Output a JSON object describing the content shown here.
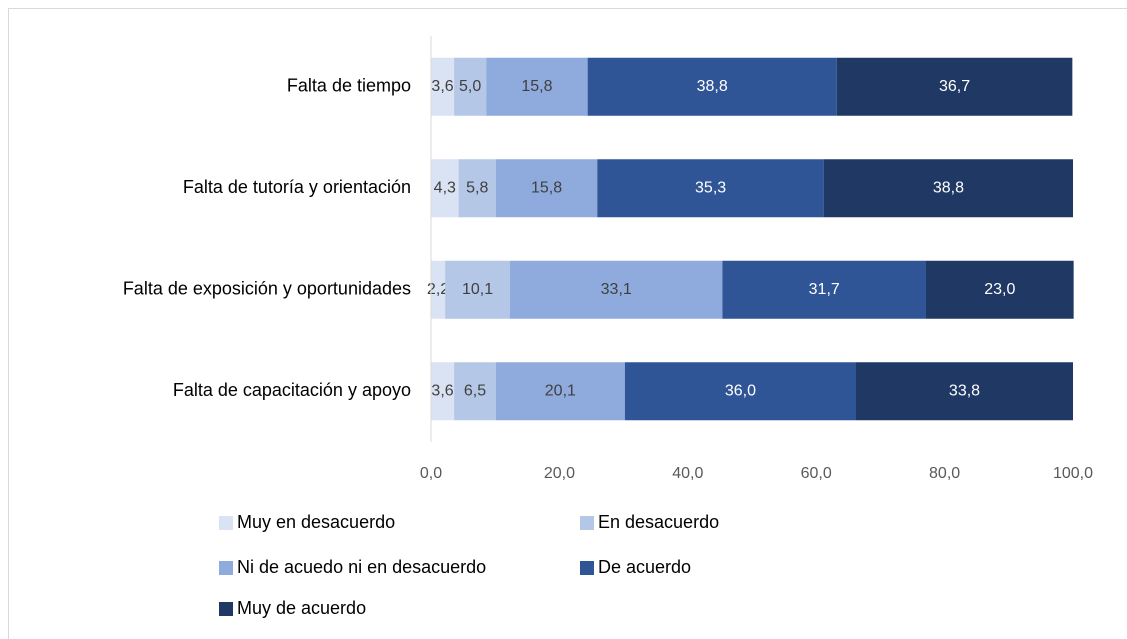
{
  "chart_data": {
    "type": "stacked_barh",
    "categories": [
      "Falta de tiempo",
      "Falta de tutoría y orientación",
      "Falta de exposición y oportunidades",
      "Falta de capacitación y apoyo"
    ],
    "series": [
      {
        "name": "Muy en desacuerdo",
        "color": "#dae3f3",
        "values": [
          3.6,
          4.3,
          2.2,
          3.6
        ],
        "value_labels": [
          "3,6",
          "4,3",
          "2,2",
          "3,6"
        ]
      },
      {
        "name": "En desacuerdo",
        "color": "#b4c7e7",
        "values": [
          5.0,
          5.8,
          10.1,
          6.5
        ],
        "value_labels": [
          "5,0",
          "5,8",
          "10,1",
          "6,5"
        ]
      },
      {
        "name": "Ni de acuedo ni en desacuerdo",
        "color": "#8faadc",
        "values": [
          15.8,
          15.8,
          33.1,
          20.1
        ],
        "value_labels": [
          "15,8",
          "15,8",
          "33,1",
          "20,1"
        ]
      },
      {
        "name": "De acuerdo",
        "color": "#2f5597",
        "values": [
          38.8,
          35.3,
          31.7,
          36.0
        ],
        "value_labels": [
          "38,8",
          "35,3",
          "31,7",
          "36,0"
        ]
      },
      {
        "name": "Muy de acuerdo",
        "color": "#203864",
        "values": [
          36.7,
          38.8,
          23.0,
          33.8
        ],
        "value_labels": [
          "36,7",
          "38,8",
          "23,0",
          "33,8"
        ]
      }
    ],
    "xlim": [
      0,
      100
    ],
    "xticks": [
      {
        "value": 0,
        "label": "0,0"
      },
      {
        "value": 20,
        "label": "20,0"
      },
      {
        "value": 40,
        "label": "40,0"
      },
      {
        "value": 60,
        "label": "60,0"
      },
      {
        "value": 80,
        "label": "80,0"
      },
      {
        "value": 100,
        "label": "100,0"
      }
    ],
    "grid": false
  }
}
